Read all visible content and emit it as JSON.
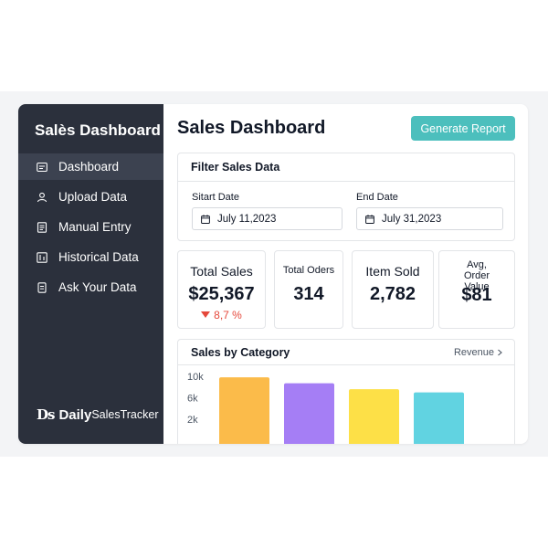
{
  "sidebar": {
    "title": "Salès Dashboard",
    "items": [
      {
        "label": "Dashboard",
        "icon": "dashboard-icon",
        "active": true
      },
      {
        "label": "Upload Data",
        "icon": "user-icon",
        "active": false
      },
      {
        "label": "Manual Entry",
        "icon": "document-icon",
        "active": false
      },
      {
        "label": "Historical Data",
        "icon": "chart-icon",
        "active": false
      },
      {
        "label": "Ask Your Data",
        "icon": "file-icon",
        "active": false
      }
    ],
    "brand": {
      "mark": "Ds",
      "daily": "Daily",
      "rest": "SalesTracker"
    }
  },
  "header": {
    "title": "Sales Dashboard",
    "generate_label": "Generate Report"
  },
  "filter": {
    "title": "Filter Sales Data",
    "start_label": "Sitart Date",
    "start_value": "July 11,2023",
    "end_label": "End Date",
    "end_value": "July 31,2023"
  },
  "stats": [
    {
      "label": "Total Sales",
      "value": "$25,367",
      "change": "8,7 %"
    },
    {
      "label": "Total Oders",
      "value": "314"
    },
    {
      "label": "Item Sold",
      "value": "2,782"
    },
    {
      "label": "Avg, Order Value",
      "value": "$81"
    }
  ],
  "chart_data": {
    "type": "bar",
    "title": "Sales by Category",
    "toggle_label": "Revenue",
    "y_ticks": [
      "10k",
      "6k",
      "2k"
    ],
    "y_tick_values": [
      10000,
      6000,
      2000
    ],
    "values": [
      9800,
      8700,
      7600,
      7000
    ],
    "colors": [
      "#fbbb4a",
      "#a57ef5",
      "#fde047",
      "#61d3e1"
    ]
  },
  "colors": {
    "sidebar_bg": "#2b303c",
    "sidebar_active": "#3c4250",
    "accent": "#4cbfbd",
    "negative": "#e5483b"
  }
}
